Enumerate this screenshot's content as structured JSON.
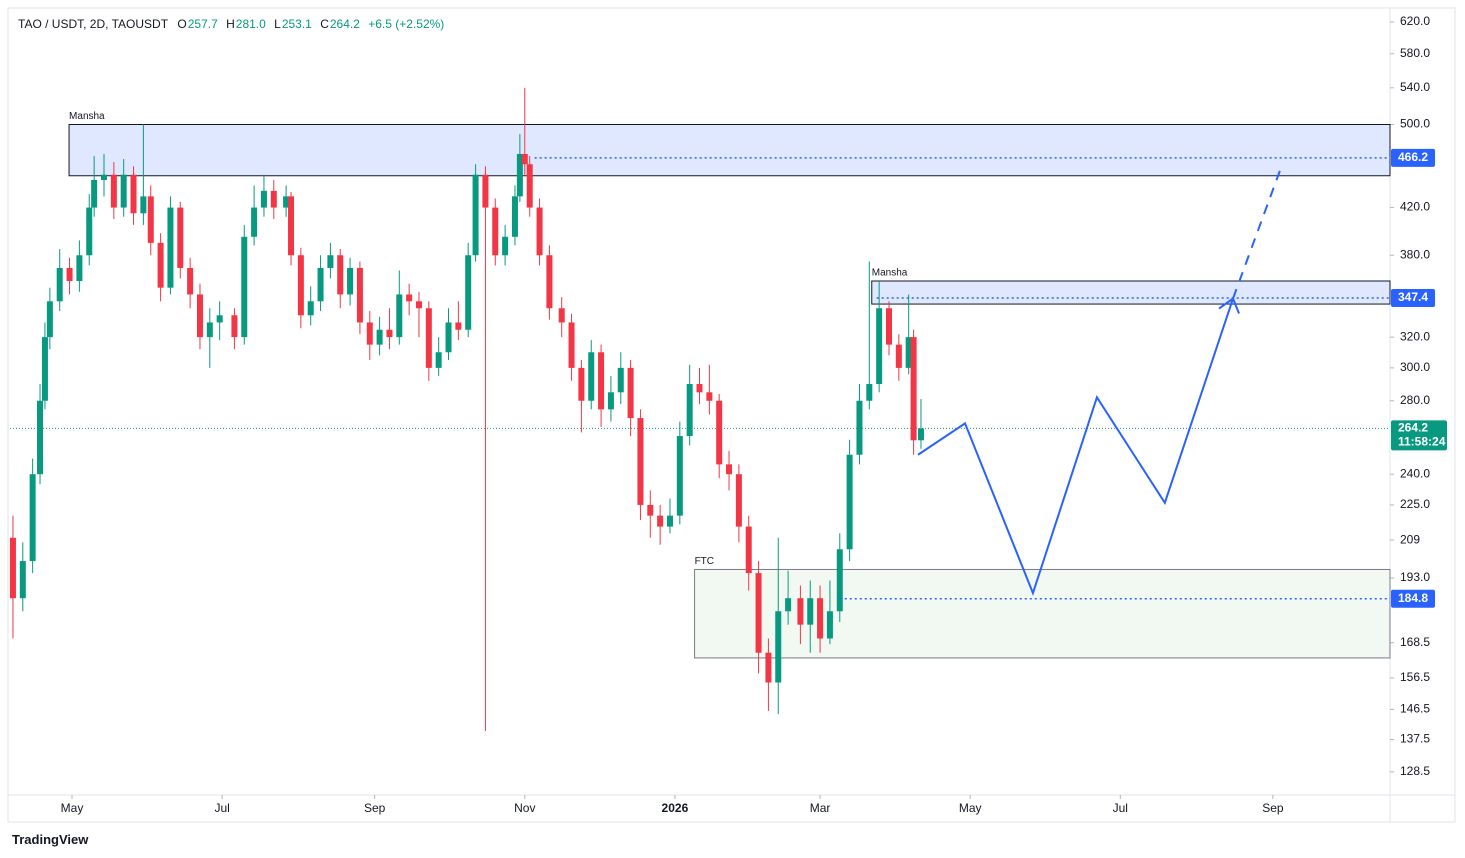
{
  "chart_data": {
    "type": "candlestick",
    "header": {
      "symbol": "TAO / USDT, 2D, TAOUSDT",
      "open_key": "O",
      "open": "257.7",
      "high_key": "H",
      "high": "281.0",
      "low_key": "L",
      "low": "253.1",
      "close_key": "C",
      "close": "264.2",
      "change": "+6.5 (+2.52%)"
    },
    "brand": "TradingView",
    "log_scale": true,
    "grid": false,
    "up_color": "#089981",
    "down_color": "#f23645",
    "xlim": [
      -25.2,
      535.6
    ],
    "xticks": [
      {
        "value": 0,
        "label": "May"
      },
      {
        "value": 61,
        "label": "Jul"
      },
      {
        "value": 123,
        "label": "Sep"
      },
      {
        "value": 184,
        "label": "Nov"
      },
      {
        "value": 245,
        "label": "2026"
      },
      {
        "value": 304,
        "label": "Mar"
      },
      {
        "value": 365,
        "label": "May"
      },
      {
        "value": 426,
        "label": "Jul"
      },
      {
        "value": 488,
        "label": "Sep"
      }
    ],
    "ylim": [
      122.4,
      638.5
    ],
    "yticks": [
      {
        "value": 620,
        "label": "620.0"
      },
      {
        "value": 580,
        "label": "580.0"
      },
      {
        "value": 540,
        "label": "540.0"
      },
      {
        "value": 500,
        "label": "500.0"
      },
      {
        "value": 420,
        "label": "420.0"
      },
      {
        "value": 380,
        "label": "380.0"
      },
      {
        "value": 320,
        "label": "320.0"
      },
      {
        "value": 300,
        "label": "300.0"
      },
      {
        "value": 280,
        "label": "280.0"
      },
      {
        "value": 240,
        "label": "240.0"
      },
      {
        "value": 225,
        "label": "225.0"
      },
      209.0,
      {
        "value": 193,
        "label": "193.0"
      },
      168.5,
      156.5,
      146.5,
      137.5,
      128.5
    ],
    "x": [
      -24,
      -20,
      -16,
      -13,
      -11,
      -9,
      -5,
      -1,
      3,
      7,
      9,
      13,
      17,
      21,
      25,
      29,
      32,
      36,
      40,
      44,
      48,
      52,
      56,
      60,
      66,
      70,
      74,
      78,
      82,
      87,
      89,
      93,
      97,
      101,
      105,
      109,
      113,
      117,
      121,
      125,
      129,
      133,
      137,
      141,
      145,
      149,
      153,
      157,
      161,
      164,
      168,
      172,
      176,
      180,
      182,
      184,
      186,
      190,
      194,
      199,
      203,
      207,
      211,
      215,
      219,
      223,
      227,
      231,
      235,
      239,
      243,
      247,
      251,
      255,
      259,
      263,
      267,
      271,
      275,
      279,
      283,
      287,
      291,
      296,
      300,
      304,
      308,
      312,
      316,
      320,
      324,
      328,
      332,
      336,
      340,
      342,
      345
    ],
    "open": [
      210,
      185,
      200,
      240,
      280,
      320,
      345,
      370,
      360,
      380,
      420,
      445,
      450,
      420,
      450,
      415,
      430,
      390,
      355,
      420,
      370,
      350,
      320,
      330,
      335,
      320,
      395,
      420,
      435,
      420,
      430,
      380,
      335,
      345,
      370,
      380,
      350,
      370,
      330,
      315,
      325,
      320,
      350,
      345,
      340,
      300,
      310,
      330,
      325,
      380,
      450,
      420,
      380,
      395,
      430,
      470,
      460,
      420,
      380,
      340,
      330,
      300,
      280,
      310,
      275,
      285,
      300,
      270,
      225,
      220,
      215,
      220,
      260,
      290,
      285,
      280,
      245,
      240,
      215,
      195,
      165,
      155,
      180,
      185,
      175,
      185,
      170,
      180,
      205,
      250,
      280,
      290,
      340,
      315,
      300,
      320,
      257.7
    ],
    "high": [
      220,
      208,
      248,
      290,
      330,
      355,
      385,
      378,
      392,
      432,
      468,
      470,
      462,
      465,
      458,
      500,
      440,
      398,
      430,
      425,
      378,
      358,
      340,
      345,
      340,
      405,
      440,
      450,
      445,
      440,
      434,
      386,
      356,
      380,
      390,
      385,
      378,
      375,
      338,
      334,
      340,
      368,
      358,
      352,
      345,
      320,
      340,
      345,
      390,
      460,
      458,
      428,
      405,
      440,
      490,
      540,
      468,
      428,
      388,
      348,
      336,
      305,
      318,
      315,
      295,
      310,
      305,
      275,
      232,
      225,
      228,
      268,
      302,
      300,
      302,
      284,
      252,
      245,
      220,
      200,
      170,
      210,
      196,
      190,
      192,
      190,
      192,
      212,
      258,
      290,
      375,
      360,
      345,
      322,
      350,
      325,
      281.0
    ],
    "low": [
      170,
      180,
      195,
      235,
      275,
      312,
      338,
      350,
      352,
      372,
      412,
      430,
      410,
      412,
      405,
      405,
      380,
      345,
      350,
      362,
      340,
      312,
      300,
      318,
      312,
      315,
      388,
      412,
      410,
      412,
      372,
      326,
      328,
      338,
      362,
      340,
      342,
      322,
      305,
      308,
      312,
      315,
      335,
      320,
      292,
      295,
      305,
      318,
      320,
      375,
      140,
      372,
      372,
      388,
      425,
      450,
      412,
      372,
      332,
      320,
      292,
      262,
      275,
      265,
      268,
      278,
      260,
      218,
      210,
      207,
      212,
      216,
      255,
      278,
      272,
      238,
      232,
      208,
      188,
      158,
      146,
      145,
      175,
      168,
      165,
      165,
      168,
      176,
      200,
      245,
      275,
      285,
      308,
      292,
      296,
      250,
      253.1
    ],
    "close": [
      185,
      200,
      240,
      280,
      320,
      345,
      370,
      360,
      380,
      420,
      445,
      450,
      420,
      450,
      415,
      430,
      390,
      355,
      420,
      370,
      350,
      320,
      330,
      335,
      320,
      395,
      420,
      435,
      420,
      430,
      380,
      335,
      345,
      370,
      380,
      350,
      370,
      330,
      315,
      325,
      320,
      350,
      345,
      340,
      300,
      310,
      330,
      325,
      380,
      450,
      420,
      380,
      395,
      430,
      470,
      460,
      420,
      380,
      340,
      330,
      300,
      280,
      310,
      275,
      285,
      300,
      270,
      225,
      220,
      215,
      220,
      260,
      290,
      285,
      280,
      245,
      240,
      215,
      195,
      165,
      155,
      180,
      185,
      175,
      185,
      170,
      180,
      205,
      250,
      280,
      290,
      340,
      315,
      300,
      320,
      257.7,
      264.2
    ],
    "zones": [
      {
        "label": "Mansha",
        "top": 500,
        "bottom": 449,
        "start": -1.2,
        "fill": "rgba(41,98,255,0.15)",
        "stroke": "#131722"
      },
      {
        "label": "Mansha",
        "top": 360,
        "bottom": 343,
        "start": 325,
        "fill": "rgba(41,98,255,0.15)",
        "stroke": "#131722"
      },
      {
        "label": "FTC",
        "top": 196.5,
        "bottom": 163.2,
        "start": 253,
        "fill": "rgba(76,175,80,0.07)",
        "stroke": "#787b86"
      }
    ],
    "price_lines": [
      {
        "value": 466.2,
        "start": 188,
        "color": "#2962ff"
      },
      {
        "value": 347.4,
        "start": 327,
        "color": "#2962ff"
      },
      {
        "value": 184.8,
        "start": 312,
        "color": "#2962ff"
      }
    ],
    "last_price": {
      "value": 264.2,
      "countdown": "11:58:24",
      "color": "#089981"
    },
    "projections": [
      {
        "style": "solid",
        "color": "#2962ff",
        "x": [
          343.8,
          362.9,
          390.5,
          416.5,
          444.1,
          471.8
        ],
        "y": [
          250,
          267,
          187,
          282,
          226,
          347
        ]
      },
      {
        "style": "dashed",
        "color": "#2962ff",
        "x": [
          471.8,
          490.9
        ],
        "y": [
          347,
          454
        ]
      }
    ]
  }
}
